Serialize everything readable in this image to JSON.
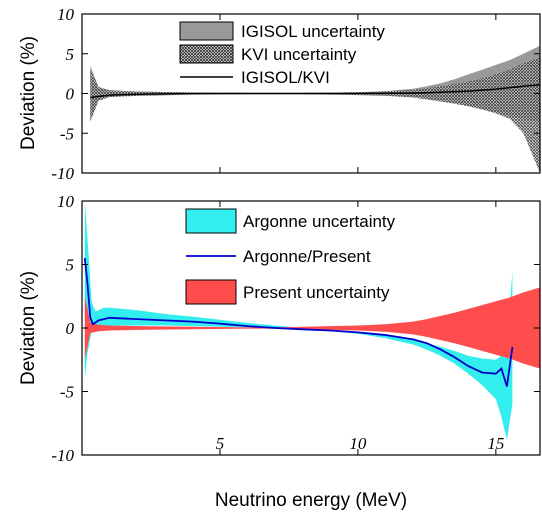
{
  "chart_data": [
    {
      "type": "area",
      "title": "",
      "xlabel": "",
      "ylabel": "Deviation (%)",
      "xlim": [
        0,
        16.6
      ],
      "ylim": [
        -10,
        10
      ],
      "yticks": [
        10,
        5,
        0,
        -5,
        -10
      ],
      "xticks": [
        5,
        10,
        15
      ],
      "xtick_labels_shown": false,
      "grid": false,
      "legend_position": "top-center",
      "series": [
        {
          "name": "IGISOL uncertainty",
          "kind": "band",
          "color": "#999999",
          "x": [
            0.3,
            0.6,
            1,
            2,
            4,
            6,
            8,
            10,
            11,
            12,
            12.5,
            13,
            13.5,
            14,
            14.5,
            15,
            15.5,
            16,
            16.6
          ],
          "lower": [
            -3.5,
            -0.8,
            -0.4,
            -0.25,
            -0.12,
            -0.08,
            -0.08,
            -0.15,
            -0.25,
            -0.45,
            -0.65,
            -0.9,
            -1.2,
            -1.6,
            -2.0,
            -2.4,
            -2.8,
            -3.2,
            -3.6
          ],
          "upper": [
            3.5,
            0.8,
            0.4,
            0.25,
            0.12,
            0.08,
            0.08,
            0.15,
            0.3,
            0.6,
            0.9,
            1.3,
            1.8,
            2.4,
            3.0,
            3.6,
            4.2,
            5.0,
            6.0
          ]
        },
        {
          "name": "KVI uncertainty",
          "kind": "band",
          "color": "#333333",
          "x": [
            0.3,
            0.6,
            1,
            2,
            4,
            6,
            8,
            10,
            11,
            12,
            12.5,
            13,
            13.5,
            14,
            14.5,
            15,
            15.5,
            16,
            16.3,
            16.6
          ],
          "lower": [
            -3.5,
            -0.9,
            -0.45,
            -0.3,
            -0.15,
            -0.1,
            -0.1,
            -0.2,
            -0.3,
            -0.5,
            -0.75,
            -1.0,
            -1.3,
            -1.6,
            -2.0,
            -2.5,
            -3.2,
            -5.0,
            -7.5,
            -10.0
          ],
          "upper": [
            3.0,
            0.8,
            0.4,
            0.25,
            0.12,
            0.08,
            0.08,
            0.15,
            0.25,
            0.45,
            0.65,
            0.9,
            1.2,
            1.5,
            1.9,
            2.4,
            3.0,
            3.8,
            4.2,
            4.5
          ]
        },
        {
          "name": "IGISOL/KVI",
          "kind": "line",
          "color": "#000000",
          "x": [
            0.3,
            1,
            2,
            4,
            6,
            8,
            10,
            12,
            13,
            14,
            15,
            16,
            16.6
          ],
          "y": [
            -0.5,
            -0.2,
            -0.1,
            0,
            0,
            0,
            0,
            0.05,
            0.15,
            0.3,
            0.55,
            0.9,
            1.1
          ]
        }
      ]
    },
    {
      "type": "area",
      "title": "",
      "xlabel": "Neutrino energy (MeV)",
      "ylabel": "Deviation (%)",
      "xlim": [
        0,
        16.6
      ],
      "ylim": [
        -10,
        10
      ],
      "yticks": [
        10,
        5,
        0,
        -5,
        -10
      ],
      "xticks": [
        5,
        10,
        15
      ],
      "grid": false,
      "legend_position": "top-center",
      "series": [
        {
          "name": "Argonne uncertainty",
          "kind": "band",
          "color": "#33eeee",
          "x": [
            0.1,
            0.2,
            0.35,
            0.5,
            0.8,
            1,
            1.5,
            2,
            3,
            4,
            5,
            6,
            7,
            8,
            9,
            10,
            11,
            12,
            12.5,
            13,
            13.5,
            14,
            14.5,
            15,
            15.2,
            15.4,
            15.6
          ],
          "lower": [
            -4.0,
            -2.0,
            -0.2,
            0.0,
            0.2,
            0.2,
            0.2,
            0.2,
            0.2,
            0.15,
            0.1,
            0.05,
            0.0,
            -0.1,
            -0.25,
            -0.45,
            -0.8,
            -1.3,
            -1.7,
            -2.2,
            -2.8,
            -3.6,
            -4.5,
            -5.6,
            -7.0,
            -8.8,
            -6.0
          ],
          "upper": [
            10.0,
            7.0,
            2.0,
            1.3,
            1.6,
            1.6,
            1.5,
            1.4,
            1.1,
            0.9,
            0.65,
            0.4,
            0.2,
            0.0,
            -0.15,
            -0.3,
            -0.5,
            -0.9,
            -1.2,
            -1.5,
            -1.8,
            -2.2,
            -2.4,
            -2.5,
            -2.2,
            -1.5,
            4.5
          ]
        },
        {
          "name": "Argonne/Present",
          "kind": "line",
          "color": "#0000cc",
          "x": [
            0.1,
            0.2,
            0.3,
            0.4,
            0.6,
            1,
            2,
            3,
            4,
            5,
            6,
            7,
            8,
            9,
            10,
            11,
            12,
            12.5,
            13,
            13.5,
            14,
            14.5,
            15,
            15.2,
            15.4,
            15.6
          ],
          "y": [
            5.5,
            3.5,
            0.8,
            0.3,
            0.6,
            0.8,
            0.7,
            0.6,
            0.5,
            0.35,
            0.15,
            0.0,
            -0.1,
            -0.2,
            -0.35,
            -0.55,
            -0.9,
            -1.2,
            -1.7,
            -2.3,
            -3.0,
            -3.5,
            -3.6,
            -3.2,
            -4.6,
            -1.5
          ]
        },
        {
          "name": "Present uncertainty",
          "kind": "band",
          "color": "#ff4d4d",
          "x": [
            0.1,
            0.3,
            0.6,
            1,
            2,
            4,
            6,
            7,
            8,
            10,
            11,
            12,
            12.5,
            13,
            13.5,
            14,
            14.5,
            15,
            15.5,
            16,
            16.6
          ],
          "lower": [
            -2.5,
            -0.4,
            -0.25,
            -0.2,
            -0.15,
            -0.1,
            -0.05,
            -0.05,
            -0.1,
            -0.2,
            -0.3,
            -0.5,
            -0.7,
            -0.95,
            -1.2,
            -1.5,
            -1.8,
            -2.1,
            -2.4,
            -2.8,
            -3.2
          ],
          "upper": [
            2.5,
            0.4,
            0.25,
            0.2,
            0.15,
            0.1,
            0.05,
            0.05,
            0.1,
            0.2,
            0.3,
            0.5,
            0.7,
            0.95,
            1.2,
            1.5,
            1.8,
            2.1,
            2.4,
            2.8,
            3.2
          ]
        }
      ]
    }
  ]
}
